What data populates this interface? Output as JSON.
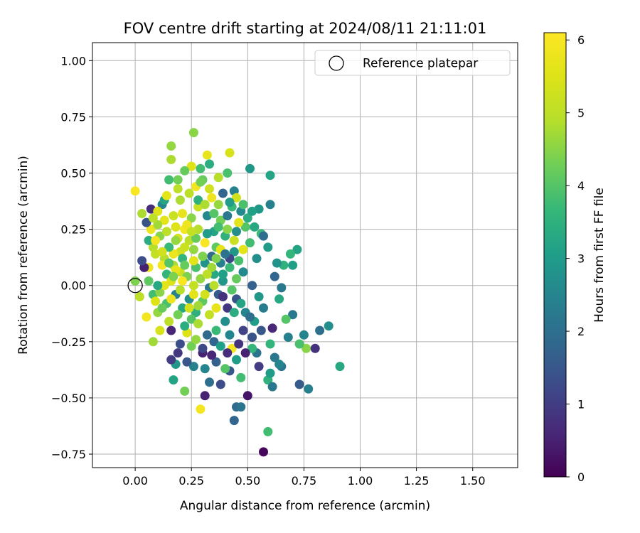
{
  "chart_data": {
    "type": "scatter",
    "title": "FOV centre drift starting at 2024/08/11 21:11:01",
    "xlabel": "Angular distance from reference (arcmin)",
    "ylabel": "Rotation from reference (arcmin)",
    "xlim": [
      -0.19,
      1.7
    ],
    "ylim": [
      -0.81,
      1.08
    ],
    "xticks": [
      0.0,
      0.25,
      0.5,
      0.75,
      1.0,
      1.25,
      1.5
    ],
    "xtick_labels": [
      "0.00",
      "0.25",
      "0.50",
      "0.75",
      "1.00",
      "1.25",
      "1.50"
    ],
    "yticks": [
      -0.75,
      -0.5,
      -0.25,
      0.0,
      0.25,
      0.5,
      0.75,
      1.0
    ],
    "ytick_labels": [
      "−0.75",
      "−0.50",
      "−0.25",
      "0.00",
      "0.25",
      "0.50",
      "0.75",
      "1.00"
    ],
    "grid": true,
    "legend": {
      "placement": "top-right",
      "entries": [
        "Reference platepar"
      ]
    },
    "reference_point": {
      "x": 0.0,
      "y": 0.0,
      "label": "Reference platepar"
    },
    "colorbar": {
      "label": "Hours from first FF file",
      "range": [
        0,
        6.1
      ],
      "ticks": [
        0,
        1,
        2,
        3,
        4,
        5,
        6
      ],
      "tick_labels": [
        "0",
        "1",
        "2",
        "3",
        "4",
        "5",
        "6"
      ],
      "colormap": "viridis"
    },
    "points": [
      [
        0.57,
        -0.74,
        0.1
      ],
      [
        0.44,
        -0.6,
        1.8
      ],
      [
        0.29,
        -0.55,
        5.9
      ],
      [
        0.59,
        -0.65,
        3.8
      ],
      [
        0.31,
        -0.49,
        0.5
      ],
      [
        0.5,
        -0.49,
        0.3
      ],
      [
        0.45,
        -0.54,
        1.9
      ],
      [
        0.47,
        -0.54,
        2.1
      ],
      [
        0.22,
        -0.47,
        4.3
      ],
      [
        0.17,
        -0.42,
        3.2
      ],
      [
        0.59,
        -0.42,
        3.5
      ],
      [
        0.61,
        -0.45,
        2.2
      ],
      [
        0.47,
        -0.41,
        3.8
      ],
      [
        0.42,
        -0.38,
        1.5
      ],
      [
        0.38,
        -0.44,
        1.3
      ],
      [
        0.33,
        -0.43,
        2.0
      ],
      [
        0.4,
        -0.37,
        4.0
      ],
      [
        0.6,
        -0.39,
        3.0
      ],
      [
        0.65,
        -0.36,
        2.1
      ],
      [
        0.73,
        -0.44,
        1.6
      ],
      [
        0.77,
        -0.46,
        2.4
      ],
      [
        0.91,
        -0.36,
        3.3
      ],
      [
        0.76,
        -0.28,
        4.5
      ],
      [
        0.8,
        -0.28,
        0.8
      ],
      [
        0.73,
        -0.26,
        3.9
      ],
      [
        0.75,
        -0.22,
        2.5
      ],
      [
        0.68,
        -0.23,
        2.4
      ],
      [
        0.61,
        -0.19,
        0.6
      ],
      [
        0.82,
        -0.2,
        2.0
      ],
      [
        0.86,
        -0.18,
        2.7
      ],
      [
        0.7,
        -0.13,
        2.2
      ],
      [
        0.67,
        -0.15,
        4.0
      ],
      [
        0.54,
        -0.3,
        2.1
      ],
      [
        0.55,
        -0.36,
        1.0
      ],
      [
        0.62,
        -0.32,
        2.2
      ],
      [
        0.64,
        -0.35,
        2.5
      ],
      [
        0.52,
        -0.28,
        3.6
      ],
      [
        0.49,
        -0.3,
        0.5
      ],
      [
        0.45,
        -0.33,
        3.0
      ],
      [
        0.43,
        -0.28,
        5.9
      ],
      [
        0.41,
        -0.3,
        0.7
      ],
      [
        0.36,
        -0.34,
        1.7
      ],
      [
        0.31,
        -0.37,
        2.5
      ],
      [
        0.26,
        -0.36,
        2.4
      ],
      [
        0.23,
        -0.34,
        1.5
      ],
      [
        0.18,
        -0.35,
        2.9
      ],
      [
        0.16,
        -0.33,
        1.0
      ],
      [
        0.19,
        -0.3,
        0.9
      ],
      [
        0.3,
        -0.3,
        0.5
      ],
      [
        0.35,
        -0.25,
        1.8
      ],
      [
        0.25,
        -0.27,
        4.3
      ],
      [
        0.2,
        -0.26,
        1.3
      ],
      [
        0.08,
        -0.25,
        4.7
      ],
      [
        0.23,
        -0.21,
        5.5
      ],
      [
        0.16,
        -0.2,
        0.6
      ],
      [
        0.11,
        -0.2,
        5.4
      ],
      [
        0.05,
        -0.14,
        5.9
      ],
      [
        0.1,
        -0.12,
        4.6
      ],
      [
        0.08,
        -0.04,
        3.8
      ],
      [
        0.02,
        -0.05,
        5.0
      ],
      [
        0.0,
        0.02,
        4.4
      ],
      [
        0.06,
        0.08,
        5.8
      ],
      [
        0.04,
        0.08,
        0.5
      ],
      [
        0.03,
        0.11,
        1.3
      ],
      [
        0.08,
        0.17,
        4.9
      ],
      [
        0.06,
        0.2,
        3.4
      ],
      [
        0.07,
        0.25,
        5.8
      ],
      [
        0.05,
        0.28,
        1.4
      ],
      [
        0.03,
        0.32,
        4.8
      ],
      [
        0.07,
        0.34,
        0.7
      ],
      [
        0.12,
        0.36,
        2.5
      ],
      [
        0.13,
        0.38,
        3.2
      ],
      [
        0.0,
        0.42,
        6.0
      ],
      [
        0.15,
        0.47,
        3.8
      ],
      [
        0.19,
        0.47,
        4.3
      ],
      [
        0.16,
        0.56,
        4.8
      ],
      [
        0.16,
        0.62,
        4.6
      ],
      [
        0.26,
        0.68,
        4.5
      ],
      [
        0.32,
        0.58,
        5.7
      ],
      [
        0.42,
        0.59,
        5.4
      ],
      [
        0.25,
        0.53,
        5.5
      ],
      [
        0.22,
        0.51,
        4.2
      ],
      [
        0.29,
        0.52,
        3.8
      ],
      [
        0.33,
        0.54,
        3.4
      ],
      [
        0.3,
        0.47,
        4.2
      ],
      [
        0.37,
        0.48,
        4.9
      ],
      [
        0.41,
        0.5,
        3.9
      ],
      [
        0.51,
        0.52,
        2.9
      ],
      [
        0.6,
        0.49,
        3.2
      ],
      [
        0.44,
        0.42,
        2.4
      ],
      [
        0.39,
        0.41,
        1.8
      ],
      [
        0.34,
        0.39,
        5.8
      ],
      [
        0.27,
        0.44,
        5.9
      ],
      [
        0.28,
        0.35,
        5.2
      ],
      [
        0.43,
        0.35,
        3.7
      ],
      [
        0.45,
        0.39,
        5.3
      ],
      [
        0.6,
        0.36,
        2.4
      ],
      [
        0.55,
        0.34,
        2.9
      ],
      [
        0.5,
        0.3,
        3.4
      ],
      [
        0.56,
        0.23,
        3.7
      ],
      [
        0.49,
        0.26,
        4.0
      ],
      [
        0.48,
        0.16,
        5.6
      ],
      [
        0.44,
        0.2,
        5.2
      ],
      [
        0.46,
        0.28,
        5.6
      ],
      [
        0.38,
        0.29,
        4.3
      ],
      [
        0.35,
        0.24,
        3.2
      ],
      [
        0.32,
        0.31,
        2.6
      ],
      [
        0.25,
        0.3,
        4.5
      ],
      [
        0.21,
        0.32,
        5.7
      ],
      [
        0.18,
        0.26,
        5.5
      ],
      [
        0.22,
        0.25,
        5.9
      ],
      [
        0.24,
        0.2,
        5.0
      ],
      [
        0.26,
        0.16,
        4.6
      ],
      [
        0.2,
        0.15,
        5.3
      ],
      [
        0.17,
        0.14,
        5.8
      ],
      [
        0.13,
        0.12,
        4.9
      ],
      [
        0.14,
        0.05,
        3.6
      ],
      [
        0.16,
        0.02,
        5.5
      ],
      [
        0.2,
        0.06,
        5.2
      ],
      [
        0.23,
        0.04,
        4.4
      ],
      [
        0.27,
        0.08,
        3.9
      ],
      [
        0.31,
        0.1,
        2.8
      ],
      [
        0.34,
        0.13,
        1.9
      ],
      [
        0.38,
        0.1,
        2.4
      ],
      [
        0.42,
        0.08,
        3.7
      ],
      [
        0.45,
        0.03,
        4.2
      ],
      [
        0.48,
        0.06,
        2.6
      ],
      [
        0.52,
        0.0,
        1.7
      ],
      [
        0.55,
        -0.05,
        2.9
      ],
      [
        0.57,
        -0.1,
        2.3
      ],
      [
        0.53,
        -0.16,
        3.0
      ],
      [
        0.49,
        -0.12,
        2.5
      ],
      [
        0.45,
        -0.06,
        1.4
      ],
      [
        0.41,
        -0.1,
        0.9
      ],
      [
        0.37,
        -0.04,
        1.6
      ],
      [
        0.33,
        -0.01,
        2.2
      ],
      [
        0.3,
        -0.07,
        4.1
      ],
      [
        0.27,
        -0.12,
        3.5
      ],
      [
        0.24,
        -0.06,
        2.7
      ],
      [
        0.21,
        -0.1,
        3.3
      ],
      [
        0.18,
        -0.04,
        2.4
      ],
      [
        0.14,
        -0.08,
        3.9
      ],
      [
        0.11,
        -0.03,
        4.5
      ],
      [
        0.13,
        0.0,
        5.6
      ],
      [
        0.17,
        0.09,
        4.8
      ],
      [
        0.21,
        0.12,
        3.6
      ],
      [
        0.26,
        0.0,
        5.1
      ],
      [
        0.29,
        0.03,
        4.6
      ],
      [
        0.35,
        0.05,
        3.3
      ],
      [
        0.39,
        0.02,
        2.9
      ],
      [
        0.43,
        -0.02,
        4.0
      ],
      [
        0.47,
        -0.08,
        3.2
      ],
      [
        0.51,
        -0.14,
        2.0
      ],
      [
        0.56,
        -0.2,
        1.5
      ],
      [
        0.6,
        -0.26,
        3.6
      ],
      [
        0.64,
        -0.06,
        3.3
      ],
      [
        0.65,
        -0.01,
        2.2
      ],
      [
        0.62,
        0.04,
        1.8
      ],
      [
        0.66,
        0.09,
        3.5
      ],
      [
        0.7,
        0.09,
        3.1
      ],
      [
        0.72,
        0.16,
        3.2
      ],
      [
        0.69,
        0.14,
        3.6
      ],
      [
        0.63,
        0.1,
        2.8
      ],
      [
        0.59,
        0.17,
        3.0
      ],
      [
        0.54,
        0.12,
        2.7
      ],
      [
        0.51,
        0.19,
        3.8
      ],
      [
        0.57,
        0.22,
        2.0
      ],
      [
        0.53,
        0.26,
        3.3
      ],
      [
        0.47,
        0.33,
        2.6
      ],
      [
        0.41,
        0.31,
        2.2
      ],
      [
        0.37,
        0.36,
        4.6
      ],
      [
        0.33,
        0.43,
        5.3
      ],
      [
        0.29,
        0.46,
        4.3
      ],
      [
        0.24,
        0.41,
        5.0
      ],
      [
        0.2,
        0.38,
        4.8
      ],
      [
        0.17,
        0.31,
        5.2
      ],
      [
        0.13,
        0.29,
        5.6
      ],
      [
        0.11,
        0.22,
        4.5
      ],
      [
        0.09,
        0.14,
        5.1
      ],
      [
        0.12,
        0.09,
        5.9
      ],
      [
        0.15,
        0.17,
        3.7
      ],
      [
        0.19,
        0.21,
        5.4
      ],
      [
        0.23,
        0.27,
        5.8
      ],
      [
        0.28,
        0.25,
        4.9
      ],
      [
        0.31,
        0.19,
        6.0
      ],
      [
        0.36,
        0.17,
        4.1
      ],
      [
        0.4,
        0.22,
        3.5
      ],
      [
        0.44,
        0.15,
        2.9
      ],
      [
        0.46,
        0.11,
        3.9
      ],
      [
        0.42,
        0.12,
        1.2
      ],
      [
        0.38,
        0.16,
        5.6
      ],
      [
        0.34,
        0.08,
        4.7
      ],
      [
        0.3,
        0.13,
        4.4
      ],
      [
        0.26,
        0.11,
        5.6
      ],
      [
        0.22,
        0.09,
        4.2
      ],
      [
        0.18,
        0.07,
        5.7
      ],
      [
        0.15,
        0.1,
        4.0
      ],
      [
        0.12,
        0.15,
        5.3
      ],
      [
        0.09,
        0.2,
        5.9
      ],
      [
        0.1,
        0.27,
        4.7
      ],
      [
        0.14,
        0.24,
        5.0
      ],
      [
        0.18,
        0.2,
        4.6
      ],
      [
        0.22,
        0.17,
        5.2
      ],
      [
        0.27,
        0.21,
        4.2
      ],
      [
        0.32,
        0.23,
        3.0
      ],
      [
        0.37,
        0.26,
        3.8
      ],
      [
        0.41,
        0.25,
        4.5
      ],
      [
        0.45,
        0.24,
        2.7
      ],
      [
        0.39,
        0.05,
        3.1
      ],
      [
        0.35,
        0.0,
        4.9
      ],
      [
        0.31,
        -0.04,
        5.3
      ],
      [
        0.28,
        -0.09,
        4.7
      ],
      [
        0.25,
        -0.15,
        4.0
      ],
      [
        0.22,
        -0.18,
        3.4
      ],
      [
        0.19,
        -0.13,
        4.3
      ],
      [
        0.15,
        -0.16,
        5.0
      ],
      [
        0.12,
        -0.1,
        4.2
      ],
      [
        0.09,
        -0.07,
        5.5
      ],
      [
        0.1,
        0.0,
        3.3
      ],
      [
        0.06,
        0.02,
        4.1
      ],
      [
        0.16,
        -0.06,
        5.8
      ],
      [
        0.2,
        -0.02,
        4.9
      ],
      [
        0.24,
        -0.1,
        5.3
      ],
      [
        0.28,
        -0.17,
        4.8
      ],
      [
        0.32,
        -0.22,
        1.9
      ],
      [
        0.36,
        -0.2,
        3.7
      ],
      [
        0.4,
        -0.16,
        2.7
      ],
      [
        0.44,
        -0.12,
        3.4
      ],
      [
        0.48,
        -0.2,
        1.1
      ],
      [
        0.52,
        -0.23,
        1.4
      ],
      [
        0.46,
        -0.26,
        0.8
      ],
      [
        0.42,
        -0.22,
        2.5
      ],
      [
        0.38,
        -0.27,
        3.1
      ],
      [
        0.34,
        -0.31,
        0.6
      ],
      [
        0.3,
        -0.28,
        1.2
      ],
      [
        0.27,
        -0.24,
        4.6
      ],
      [
        0.36,
        -0.1,
        5.7
      ],
      [
        0.39,
        -0.05,
        0.8
      ],
      [
        0.33,
        -0.13,
        5.1
      ],
      [
        0.26,
        -0.04,
        5.6
      ],
      [
        0.21,
        0.02,
        6.0
      ],
      [
        0.17,
        0.04,
        4.4
      ],
      [
        0.32,
        0.05,
        5.0
      ],
      [
        0.36,
        0.12,
        4.4
      ],
      [
        0.4,
        0.14,
        2.1
      ],
      [
        0.25,
        0.24,
        5.1
      ],
      [
        0.28,
        0.38,
        3.5
      ],
      [
        0.31,
        0.36,
        4.8
      ],
      [
        0.35,
        0.32,
        4.0
      ],
      [
        0.42,
        0.37,
        3.0
      ],
      [
        0.48,
        0.36,
        3.9
      ],
      [
        0.52,
        0.33,
        3.1
      ],
      [
        0.19,
        0.43,
        5.0
      ],
      [
        0.14,
        0.4,
        5.6
      ],
      [
        0.1,
        0.33,
        5.5
      ],
      [
        0.08,
        0.3,
        5.0
      ]
    ]
  }
}
